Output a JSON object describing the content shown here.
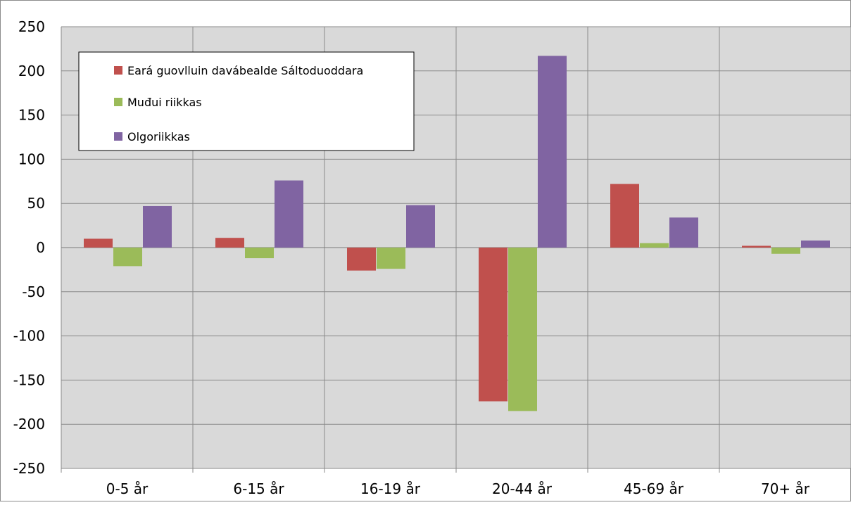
{
  "chart_data": {
    "type": "bar",
    "title": "",
    "xlabel": "",
    "ylabel": "",
    "categories": [
      "0-5 år",
      "6-15 år",
      "16-19 år",
      "20-44 år",
      "45-69 år",
      "70+ år"
    ],
    "series": [
      {
        "name": "Eará guovlluin davábealde Sáltoduoddara",
        "color": "#c0504d",
        "values": [
          10,
          11,
          -26,
          -174,
          72,
          2
        ]
      },
      {
        "name": "Muđui riikkas",
        "color": "#9bbb59",
        "values": [
          -21,
          -12,
          -24,
          -185,
          5,
          -7
        ]
      },
      {
        "name": "Olgoriikkas",
        "color": "#8064a2",
        "values": [
          47,
          76,
          48,
          217,
          34,
          8
        ]
      }
    ],
    "ylim": [
      -250,
      250
    ],
    "yticks": [
      -250,
      -200,
      -150,
      -100,
      -50,
      0,
      50,
      100,
      150,
      200,
      250
    ],
    "grid": true,
    "legend_position": "top-left",
    "plot_background": "#d9d9d9"
  }
}
